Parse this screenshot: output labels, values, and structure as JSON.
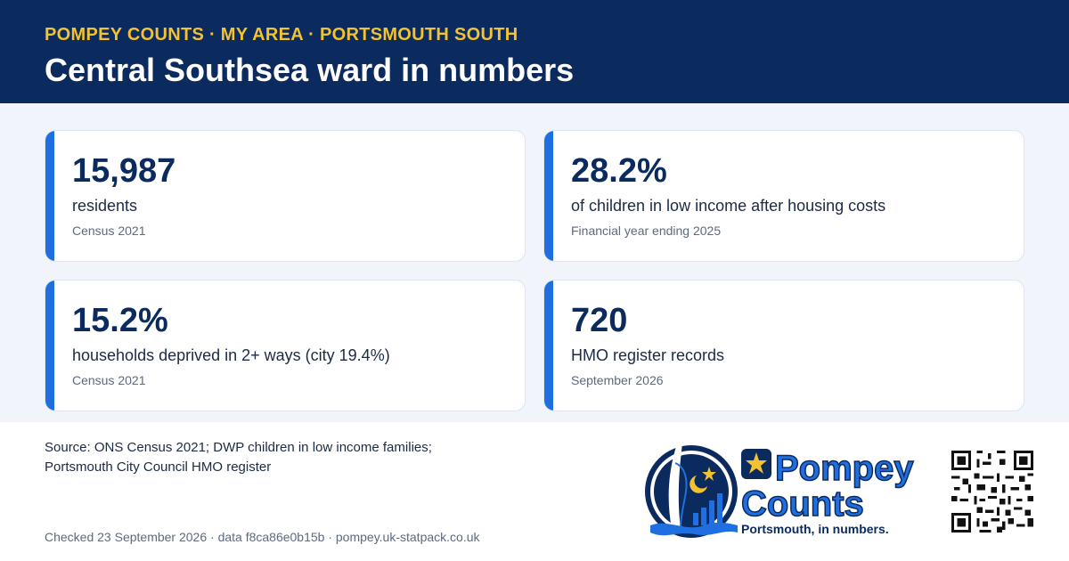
{
  "header": {
    "kicker": "POMPEY COUNTS · MY AREA · PORTSMOUTH SOUTH",
    "title": "Central Southsea ward in numbers"
  },
  "cards": [
    {
      "value": "15,987",
      "label": "residents",
      "note": "Census 2021"
    },
    {
      "value": "28.2%",
      "label": "of children in low income after housing costs",
      "note": "Financial year ending 2025"
    },
    {
      "value": "15.2%",
      "label": "households deprived in 2+ ways (city 19.4%)",
      "note": "Census 2021"
    },
    {
      "value": "720",
      "label": "HMO register records",
      "note": "September 2026"
    }
  ],
  "footer": {
    "source_line1": "Source: ONS Census 2021; DWP children in low income families;",
    "source_line2": "Portsmouth City Council HMO register",
    "checked": "Checked 23 September 2026 · data f8ca86e0b15b · pompey.uk-statpack.co.uk"
  },
  "logo": {
    "word1": "Pompey",
    "word2": "Counts",
    "tagline": "Portsmouth, in numbers.",
    "icon": "pompey-counts-logo"
  },
  "qr": {
    "icon": "qr-code-icon"
  },
  "colors": {
    "navy": "#0b2a5e",
    "gold": "#f2c230",
    "accent_blue": "#1f6fe0",
    "stage_bg": "#f1f5fb"
  }
}
